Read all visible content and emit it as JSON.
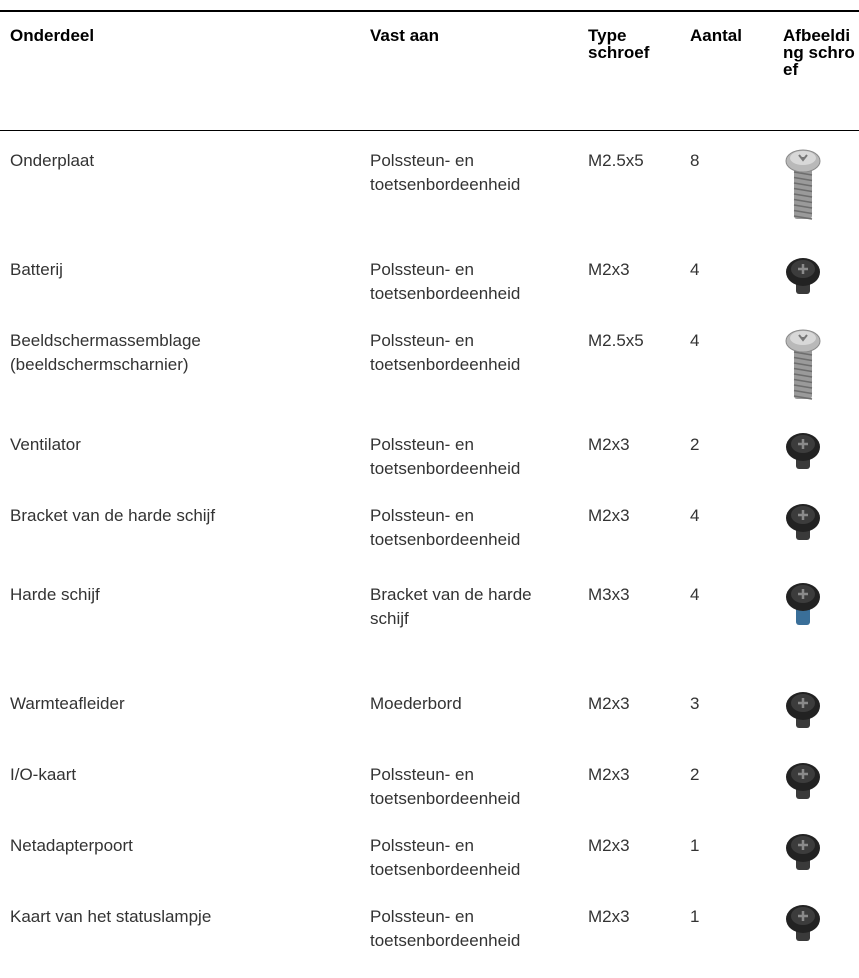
{
  "table": {
    "header": [
      "Onderdeel",
      "Vast aan",
      "Type schroef",
      "Aantal",
      "Afbeelding schroef"
    ],
    "rows": [
      [
        "Onderplaat",
        "Polssteun- en toetsenbordeenheid",
        "M2.5x5",
        "8"
      ],
      [
        "Batterij",
        "Polssteun- en toetsenbordeenheid",
        "M2x3",
        "4"
      ],
      [
        "Beeldschermassemblage (beeldschermscharnier)",
        "Polssteun- en toetsenbordeenheid",
        "M2.5x5",
        "4"
      ],
      [
        "Ventilator",
        "Polssteun- en toetsenbordeenheid",
        "M2x3",
        "2"
      ],
      [
        "Bracket van de harde schijf",
        "Polssteun- en toetsenbordeenheid",
        "M2x3",
        "4"
      ],
      [
        "Harde schijf",
        "Bracket van de harde schijf",
        "M3x3",
        "4"
      ],
      [
        "Warmteafleider",
        "Moederbord",
        "M2x3",
        "3"
      ],
      [
        "I/O-kaart",
        "Polssteun- en toetsenbordeenheid",
        "M2x3",
        "2"
      ],
      [
        "Netadapterpoort",
        "Polssteun- en toetsenbordeenheid",
        "M2x3",
        "1"
      ],
      [
        "Kaart van het statuslampje",
        "Polssteun- en toetsenbordeenheid",
        "M2x3",
        "1"
      ]
    ]
  }
}
